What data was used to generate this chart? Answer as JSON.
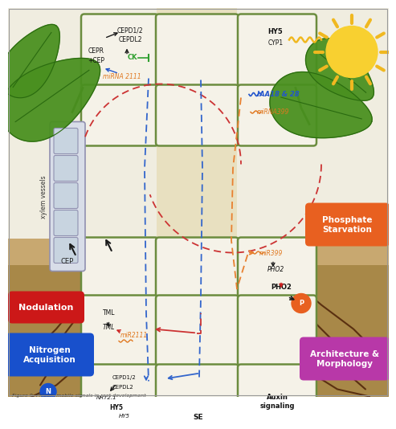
{
  "figure_caption": "Figure 9. Phloem mobile signals in root development",
  "bg_white": "#ffffff",
  "sky_color": "#f0f0e8",
  "soil_color": "#c8a878",
  "soil_dark": "#a08858",
  "phloem_col_color": "#e8e0c0",
  "cell_bg": "#f5f2e8",
  "cell_border": "#6b8c3e",
  "cell_lw": 1.8,
  "xylem_bg": "#d0d8e0",
  "xylem_border": "#9090b0",
  "leaf_dark": "#3a7a1e",
  "leaf_mid": "#4e9428",
  "leaf_light": "#5aaa30",
  "sun_yellow": "#f8d030",
  "sun_ray": "#f0b820",
  "sun_orange": "#f09020",
  "miRNA_orange": "#e07820",
  "CK_green": "#30a030",
  "IAA_blue": "#2255cc",
  "arrow_black": "#1a1a1a",
  "arrow_red": "#cc2222",
  "dashed_red": "#cc3333",
  "dashed_blue": "#3366cc",
  "dashed_orange": "#e88030",
  "dashed_pink": "#d050a0",
  "phosphate_box": "#e86020",
  "nodulation_box": "#cc1818",
  "nitrogen_box": "#1850cc",
  "architecture_box": "#b838a8",
  "p_circle": "#e86020",
  "n_circle": "#1850cc"
}
